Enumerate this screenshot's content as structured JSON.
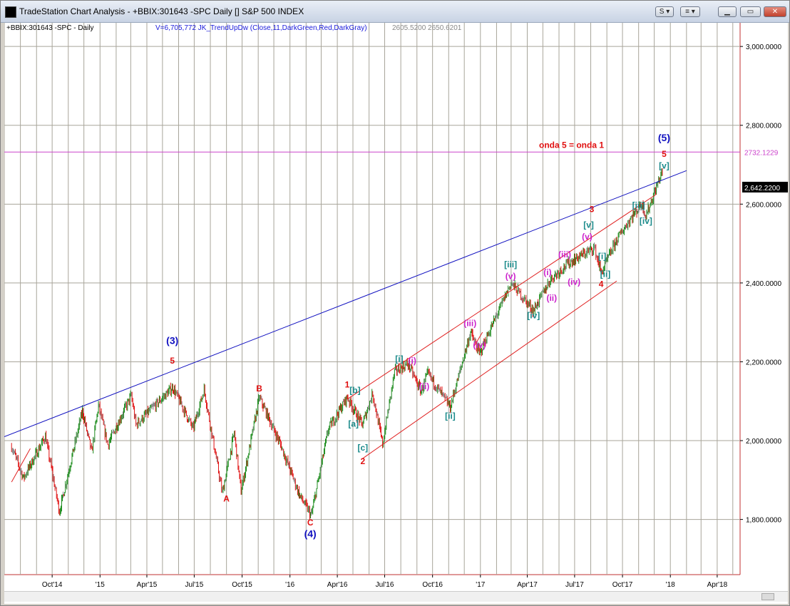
{
  "window": {
    "title": "TradeStation Chart Analysis - +BBIX:301643 -SPC Daily [] S&P 500 INDEX",
    "buttons": {
      "s_menu": "S ▾",
      "link_menu": "≡ ▾",
      "minimize": "▁",
      "maximize": "▭",
      "close": "✕"
    }
  },
  "chart_header": {
    "symbol": "+BBIX:301643 -SPC - Daily",
    "indicator": "V=6,705,772  JK_TrendUpDw (Close,11,DarkGreen,Red,DarkGray)",
    "values": "2605.5200  2650.6201"
  },
  "colors": {
    "up": "#1a8a1a",
    "down": "#e01010",
    "neutral": "#808080",
    "trendline": "#1010c0",
    "channel": "#e02020",
    "hline": "#cc44cc",
    "grid": "#a8a59a"
  },
  "chart_data": {
    "type": "line",
    "subtype": "price bars with annotations",
    "xlabels": [
      "Oct'14",
      "'15",
      "Apr'15",
      "Jul'15",
      "Oct'15",
      "'16",
      "Apr'16",
      "Jul'16",
      "Oct'16",
      "'17",
      "Apr'17",
      "Jul'17",
      "Oct'17",
      "'18",
      "Apr'18"
    ],
    "ylabels": [
      "3,000.0000",
      "2,800.0000",
      "2,600.0000",
      "2,400.0000",
      "2,200.0000",
      "2,000.0000",
      "1,800.0000"
    ],
    "ylim": [
      1660,
      3060
    ],
    "last_price_label": "2,642.2200",
    "hline": {
      "value": 2732.1229,
      "label": "2732.1229",
      "note": "onda 5 = onda 1"
    },
    "series": [
      {
        "x": [
          "2014-07-15",
          "2014-08-07",
          "2014-09-18",
          "2014-10-15",
          "2014-11-28",
          "2014-12-16",
          "2014-12-29",
          "2015-01-16",
          "2015-03-02",
          "2015-03-11",
          "2015-05-21",
          "2015-06-29",
          "2015-07-20",
          "2015-08-24",
          "2015-09-16",
          "2015-09-29",
          "2015-11-03",
          "2015-12-14",
          "2016-01-20",
          "2016-02-11",
          "2016-03-15",
          "2016-04-20",
          "2016-05-19",
          "2016-06-08",
          "2016-06-27",
          "2016-07-20",
          "2016-08-15",
          "2016-09-09",
          "2016-09-22",
          "2016-11-04",
          "2016-12-13",
          "2016-12-30",
          "2017-03-01",
          "2017-04-13",
          "2017-05-16",
          "2017-06-19",
          "2017-08-08",
          "2017-08-21",
          "2017-09-20",
          "2017-10-20",
          "2017-11-07",
          "2017-11-15",
          "2017-12-18"
        ],
        "values": [
          1985,
          1905,
          2011,
          1820,
          2075,
          1970,
          2090,
          1990,
          2115,
          2040,
          2135,
          2030,
          2130,
          1867,
          2020,
          1870,
          2110,
          1990,
          1860,
          1810,
          2030,
          2110,
          2040,
          2120,
          1990,
          2175,
          2195,
          2125,
          2170,
          2085,
          2275,
          2220,
          2400,
          2330,
          2410,
          2450,
          2490,
          2425,
          2510,
          2570,
          2600,
          2570,
          2690
        ]
      }
    ],
    "annotations": [
      {
        "text": "(3)",
        "date": "2015-05-20",
        "price": 2245,
        "color": "#1010c0"
      },
      {
        "text": "5",
        "date": "2015-05-20",
        "price": 2195,
        "color": "#e01010"
      },
      {
        "text": "A",
        "date": "2015-09-01",
        "price": 1845,
        "color": "#e01010"
      },
      {
        "text": "B",
        "date": "2015-11-03",
        "price": 2125,
        "color": "#e01010"
      },
      {
        "text": "C",
        "date": "2016-02-09",
        "price": 1785,
        "color": "#e01010"
      },
      {
        "text": "(4)",
        "date": "2016-02-09",
        "price": 1755,
        "color": "#1010c0"
      },
      {
        "text": "1",
        "date": "2016-04-20",
        "price": 2135,
        "color": "#e01010"
      },
      {
        "text": "[b]",
        "date": "2016-05-05",
        "price": 2120,
        "color": "#1a8a8a"
      },
      {
        "text": "[a]",
        "date": "2016-05-02",
        "price": 2035,
        "color": "#1a8a8a"
      },
      {
        "text": "[c]",
        "date": "2016-05-20",
        "price": 1975,
        "color": "#1a8a8a"
      },
      {
        "text": "2",
        "date": "2016-05-20",
        "price": 1940,
        "color": "#e01010"
      },
      {
        "text": "[i]",
        "date": "2016-07-29",
        "price": 2200,
        "color": "#1a8a8a"
      },
      {
        "text": "(i)",
        "date": "2016-08-23",
        "price": 2195,
        "color": "#cc22cc"
      },
      {
        "text": "(ii)",
        "date": "2016-09-15",
        "price": 2130,
        "color": "#cc22cc"
      },
      {
        "text": "[ii]",
        "date": "2016-11-04",
        "price": 2055,
        "color": "#1a8a8a"
      },
      {
        "text": "(iii)",
        "date": "2016-12-12",
        "price": 2290,
        "color": "#cc22cc"
      },
      {
        "text": "(iv)",
        "date": "2016-12-30",
        "price": 2235,
        "color": "#cc22cc"
      },
      {
        "text": "[iii]",
        "date": "2017-02-28",
        "price": 2440,
        "color": "#1a8a8a"
      },
      {
        "text": "(v)",
        "date": "2017-02-28",
        "price": 2410,
        "color": "#cc22cc"
      },
      {
        "text": "[iv]",
        "date": "2017-04-13",
        "price": 2310,
        "color": "#1a8a8a"
      },
      {
        "text": "(i)",
        "date": "2017-05-10",
        "price": 2420,
        "color": "#cc22cc"
      },
      {
        "text": "(ii)",
        "date": "2017-05-18",
        "price": 2355,
        "color": "#cc22cc"
      },
      {
        "text": "(iii)",
        "date": "2017-06-12",
        "price": 2465,
        "color": "#cc22cc"
      },
      {
        "text": "(iv)",
        "date": "2017-06-30",
        "price": 2395,
        "color": "#cc22cc"
      },
      {
        "text": "(v)",
        "date": "2017-07-25",
        "price": 2510,
        "color": "#cc22cc"
      },
      {
        "text": "[v]",
        "date": "2017-07-28",
        "price": 2540,
        "color": "#1a8a8a"
      },
      {
        "text": "3",
        "date": "2017-08-03",
        "price": 2580,
        "color": "#e01010"
      },
      {
        "text": "[i]",
        "date": "2017-08-23",
        "price": 2460,
        "color": "#1a8a8a"
      },
      {
        "text": "[ii]",
        "date": "2017-08-29",
        "price": 2415,
        "color": "#1a8a8a"
      },
      {
        "text": "4",
        "date": "2017-08-21",
        "price": 2390,
        "color": "#e01010"
      },
      {
        "text": "[iii]",
        "date": "2017-11-01",
        "price": 2590,
        "color": "#1a8a8a"
      },
      {
        "text": "[iv]",
        "date": "2017-11-15",
        "price": 2550,
        "color": "#1a8a8a"
      },
      {
        "text": "[v]",
        "date": "2017-12-20",
        "price": 2690,
        "color": "#1a8a8a"
      },
      {
        "text": "5",
        "date": "2017-12-20",
        "price": 2720,
        "color": "#e01010"
      },
      {
        "text": "(5)",
        "date": "2017-12-20",
        "price": 2760,
        "color": "#1010c0"
      }
    ],
    "grid": true
  }
}
